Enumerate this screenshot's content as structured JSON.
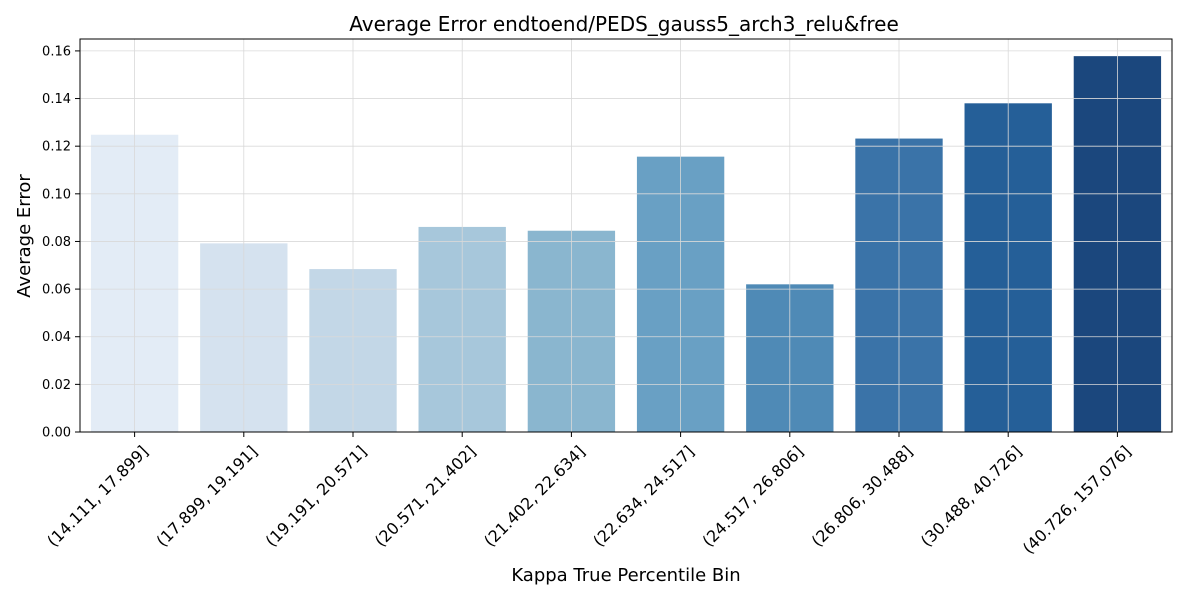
{
  "chart_data": {
    "type": "bar",
    "title": "Average Error endtoend/PEDS_gauss5_arch3_relu&free",
    "xlabel": "Kappa True Percentile Bin",
    "ylabel": "Average Error",
    "categories": [
      "(14.111, 17.899]",
      "(17.899, 19.191]",
      "(19.191, 20.571]",
      "(20.571, 21.402]",
      "(21.402, 22.634]",
      "(22.634, 24.517]",
      "(24.517, 26.806]",
      "(26.806, 30.488]",
      "(30.488, 40.726]",
      "(40.726, 157.076]"
    ],
    "values": [
      0.1248,
      0.0792,
      0.0684,
      0.0861,
      0.0845,
      0.1156,
      0.062,
      0.1232,
      0.138,
      0.1578
    ],
    "colors": [
      "#e3ecf6",
      "#d5e2ef",
      "#c3d7e7",
      "#a7c7db",
      "#8ab6cf",
      "#69a0c4",
      "#4f8ab6",
      "#3a73a8",
      "#255f98",
      "#1b477d"
    ],
    "ylim": [
      0,
      0.165
    ],
    "yticks": [
      "0.00",
      "0.02",
      "0.04",
      "0.06",
      "0.08",
      "0.10",
      "0.12",
      "0.14",
      "0.16"
    ],
    "ytick_values": [
      0,
      0.02,
      0.04,
      0.06,
      0.08,
      0.1,
      0.12,
      0.14,
      0.16
    ],
    "grid": true
  }
}
